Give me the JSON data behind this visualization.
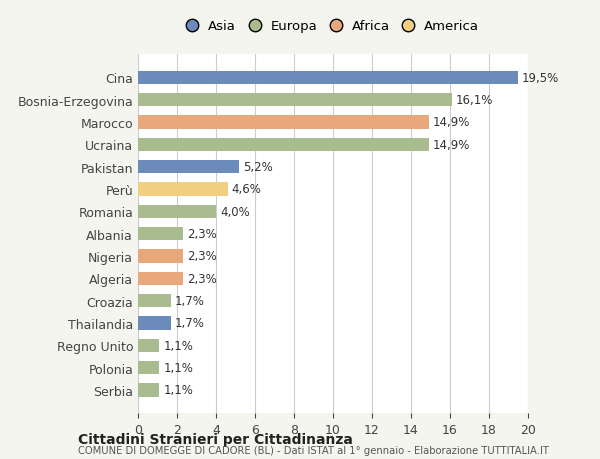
{
  "countries": [
    "Cina",
    "Bosnia-Erzegovina",
    "Marocco",
    "Ucraina",
    "Pakistan",
    "Perù",
    "Romania",
    "Albania",
    "Nigeria",
    "Algeria",
    "Croazia",
    "Thailandia",
    "Regno Unito",
    "Polonia",
    "Serbia"
  ],
  "values": [
    19.5,
    16.1,
    14.9,
    14.9,
    5.2,
    4.6,
    4.0,
    2.3,
    2.3,
    2.3,
    1.7,
    1.7,
    1.1,
    1.1,
    1.1
  ],
  "labels": [
    "19,5%",
    "16,1%",
    "14,9%",
    "14,9%",
    "5,2%",
    "4,6%",
    "4,0%",
    "2,3%",
    "2,3%",
    "2,3%",
    "1,7%",
    "1,7%",
    "1,1%",
    "1,1%",
    "1,1%"
  ],
  "colors": [
    "#6b8cba",
    "#a8bc8f",
    "#e8a87c",
    "#a8bc8f",
    "#6b8cba",
    "#f0d080",
    "#a8bc8f",
    "#a8bc8f",
    "#e8a87c",
    "#e8a87c",
    "#a8bc8f",
    "#6b8cba",
    "#a8bc8f",
    "#a8bc8f",
    "#a8bc8f"
  ],
  "legend": [
    {
      "label": "Asia",
      "color": "#6b8cba"
    },
    {
      "label": "Europa",
      "color": "#a8bc8f"
    },
    {
      "label": "Africa",
      "color": "#e8a87c"
    },
    {
      "label": "America",
      "color": "#f0d080"
    }
  ],
  "title": "Cittadini Stranieri per Cittadinanza",
  "subtitle": "COMUNE DI DOMEGGE DI CADORE (BL) - Dati ISTAT al 1° gennaio - Elaborazione TUTTITALIA.IT",
  "xlim": [
    0,
    20
  ],
  "xticks": [
    0,
    2,
    4,
    6,
    8,
    10,
    12,
    14,
    16,
    18,
    20
  ],
  "background_color": "#f5f5f0",
  "plot_bg_color": "#ffffff"
}
